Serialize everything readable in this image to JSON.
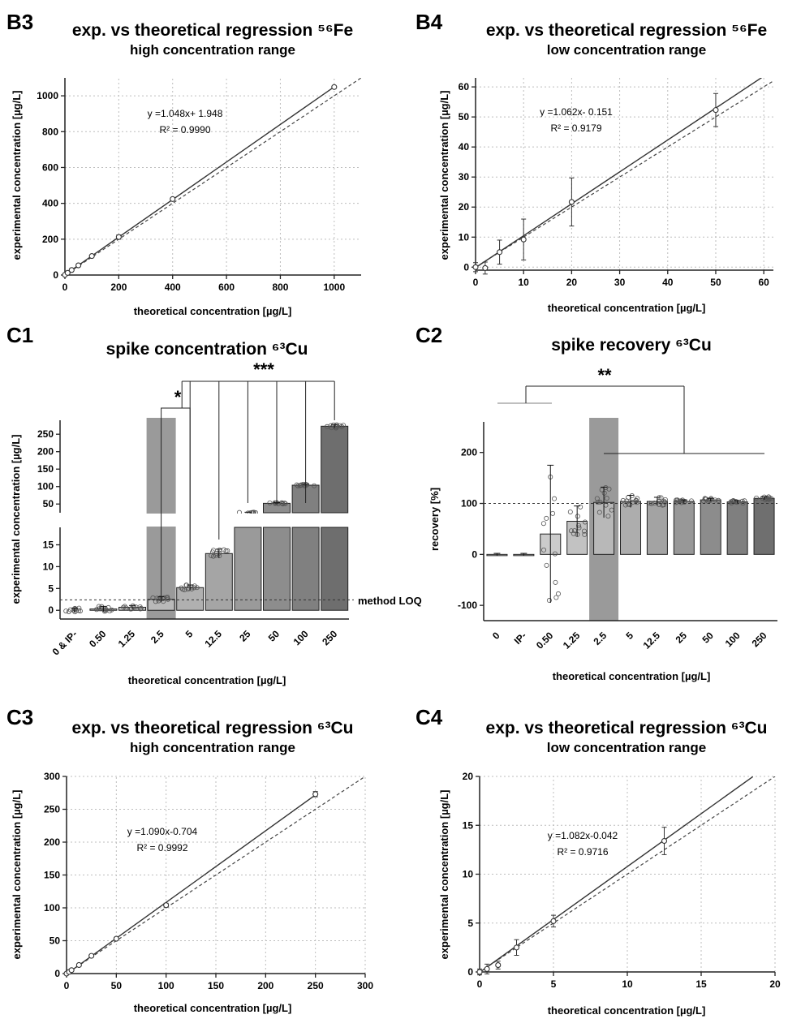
{
  "chart_data": [
    {
      "panel": "B3",
      "type": "scatter",
      "title": "exp. vs theoretical regression ⁵⁶Fe",
      "subtitle": "high concentration range",
      "xlabel": "theoretical concentration [µg/L]",
      "ylabel": "experimental concentration [µg/L]",
      "xlim": [
        0,
        1100
      ],
      "ylim": [
        0,
        1100
      ],
      "xticks": [
        0,
        200,
        400,
        600,
        800,
        1000
      ],
      "yticks": [
        0,
        200,
        400,
        600,
        800,
        1000
      ],
      "x": [
        0,
        10,
        25,
        50,
        100,
        200,
        400,
        1000
      ],
      "y": [
        1,
        12,
        28,
        54,
        106,
        212,
        424,
        1049
      ],
      "errors": [
        2,
        2,
        3,
        3,
        4,
        12,
        6,
        6
      ],
      "regression": {
        "slope": 1.048,
        "intercept": 1.948
      },
      "equation": "y =1.048x+ 1.948",
      "r2": "R² = 0.9990",
      "grid": true
    },
    {
      "panel": "B4",
      "type": "scatter",
      "title": "exp. vs theoretical regression ⁵⁶Fe",
      "subtitle": "low concentration range",
      "xlabel": "theoretical concentration [µg/L]",
      "ylabel": "experimental concentration [µg/L]",
      "xlim": [
        0,
        62
      ],
      "ylim": [
        -1,
        63
      ],
      "xticks": [
        0,
        10,
        20,
        30,
        40,
        50,
        60
      ],
      "yticks": [
        0,
        10,
        20,
        30,
        40,
        50,
        60
      ],
      "x": [
        0,
        2,
        5,
        10,
        20,
        50
      ],
      "y": [
        0,
        -0.3,
        5,
        9.2,
        21.7,
        52.3
      ],
      "errors": [
        1.5,
        2,
        4,
        6.8,
        8,
        5.5
      ],
      "regression": {
        "slope": 1.062,
        "intercept": -0.151
      },
      "equation": "y =1.062x- 0.151",
      "r2": "R² = 0.9179",
      "grid": true
    },
    {
      "panel": "C1",
      "type": "bar",
      "title": "spike concentration ⁶³Cu",
      "xlabel": "theoretical concentration [µg/L]",
      "ylabel": "experimental concentration [µg/L]",
      "categories": [
        "0 & IP-",
        "0.50",
        "1.25",
        "2.5",
        "5",
        "12.5",
        "25",
        "50",
        "100",
        "250"
      ],
      "values": [
        0,
        0.3,
        0.7,
        2.5,
        5.2,
        13,
        25,
        52,
        104,
        273
      ],
      "errors": [
        0.5,
        0.6,
        0.4,
        0.6,
        0.6,
        1.0,
        1.5,
        2,
        3,
        5
      ],
      "yticks_lower": [
        0,
        5,
        10,
        15
      ],
      "yticks_upper": [
        50,
        100,
        150,
        200,
        250
      ],
      "loq_label": "method LOQ",
      "loq_value": 2.4,
      "significance": [
        "*",
        "***"
      ]
    },
    {
      "panel": "C2",
      "type": "bar",
      "title": "spike recovery ⁶³Cu",
      "xlabel": "theoretical concentration [µg/L]",
      "ylabel": "recovery [%]",
      "categories": [
        "0",
        "IP-",
        "0.50",
        "1.25",
        "2.5",
        "5",
        "12.5",
        "25",
        "50",
        "100",
        "250"
      ],
      "values": [
        0,
        0,
        40,
        65,
        102,
        104,
        104,
        104,
        107,
        103,
        110
      ],
      "errors": [
        2,
        2,
        135,
        30,
        30,
        12,
        8,
        3,
        3,
        3,
        3
      ],
      "ylim": [
        -130,
        260
      ],
      "yticks": [
        -100,
        0,
        100,
        200
      ],
      "reference_value": 100,
      "significance": [
        "**"
      ]
    },
    {
      "panel": "C3",
      "type": "scatter",
      "title": "exp. vs theoretical regression ⁶³Cu",
      "subtitle": "high concentration range",
      "xlabel": "theoretical concentration [µg/L]",
      "ylabel": "experimental concentration [µg/L]",
      "xlim": [
        0,
        300
      ],
      "ylim": [
        0,
        300
      ],
      "xticks": [
        0,
        50,
        100,
        150,
        200,
        250,
        300
      ],
      "yticks": [
        0,
        50,
        100,
        150,
        200,
        250,
        300
      ],
      "x": [
        0,
        2.5,
        5,
        12.5,
        25,
        50,
        100,
        250
      ],
      "y": [
        0,
        2.5,
        5.2,
        13,
        27,
        53,
        104,
        273
      ],
      "errors": [
        1,
        1,
        1,
        1.5,
        1.5,
        2,
        3,
        4
      ],
      "regression": {
        "slope": 1.09,
        "intercept": -0.704
      },
      "equation": "y =1.090x-0.704",
      "r2": "R² = 0.9992",
      "grid": true
    },
    {
      "panel": "C4",
      "type": "scatter",
      "title": "exp. vs theoretical regression ⁶³Cu",
      "subtitle": "low concentration range",
      "xlabel": "theoretical concentration [µg/L]",
      "ylabel": "experimental concentration [µg/L]",
      "xlim": [
        0,
        20
      ],
      "ylim": [
        0,
        20
      ],
      "xticks": [
        0,
        5,
        10,
        15,
        20
      ],
      "yticks": [
        0,
        5,
        10,
        15,
        20
      ],
      "x": [
        0,
        0.5,
        1.25,
        2.5,
        5,
        12.5
      ],
      "y": [
        0,
        0.3,
        0.7,
        2.5,
        5.2,
        13.4
      ],
      "errors": [
        0.3,
        0.5,
        0.4,
        0.8,
        0.6,
        1.4
      ],
      "regression": {
        "slope": 1.082,
        "intercept": -0.042
      },
      "equation": "y =1.082x-0.042",
      "r2": "R² = 0.9716",
      "grid": true
    }
  ]
}
